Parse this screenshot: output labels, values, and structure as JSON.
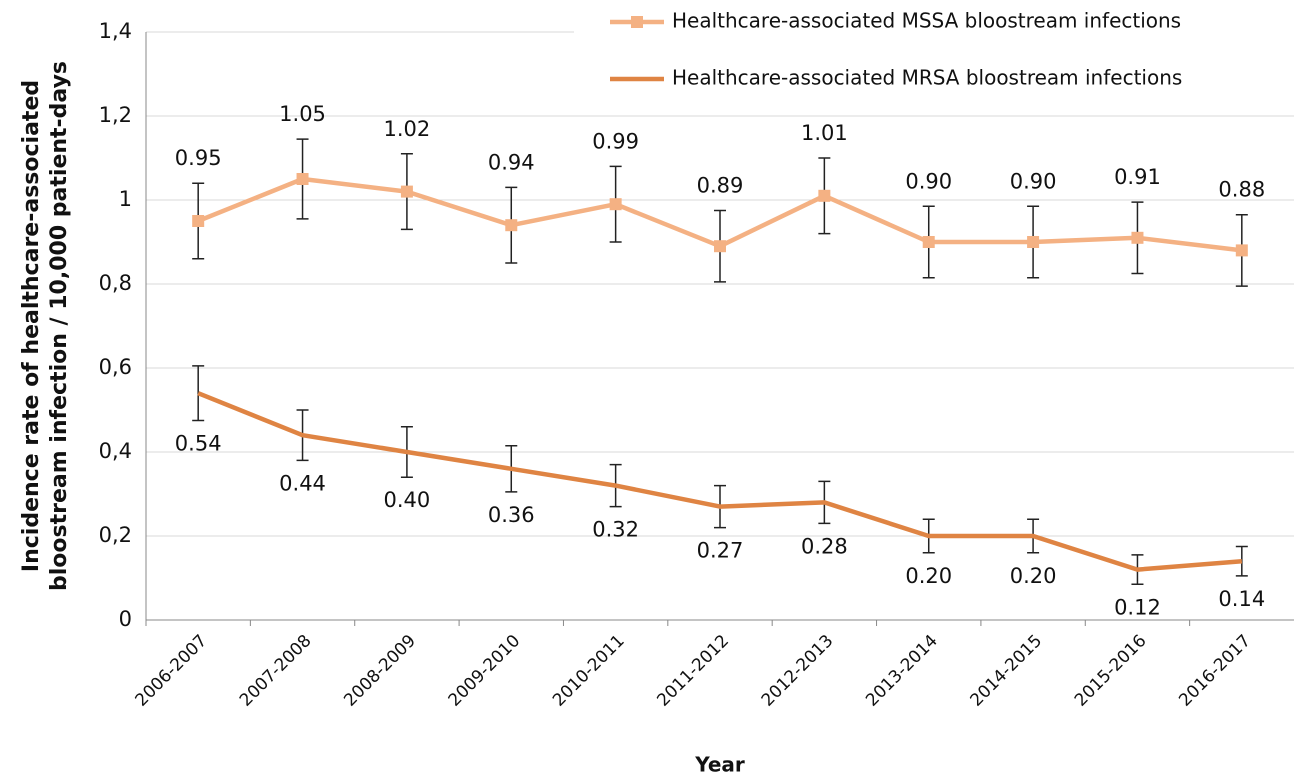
{
  "chart_data": {
    "type": "line",
    "xlabel": "Year",
    "ylabel": [
      "Incidence rate of healthcare-associated",
      "bloostream infection / 10,000 patient-days"
    ],
    "categories": [
      "2006-2007",
      "2007-2008",
      "2008-2009",
      "2009-2010",
      "2010-2011",
      "2011-2012",
      "2012-2013",
      "2013-2014",
      "2014-2015",
      "2015-2016",
      "2016-2017"
    ],
    "series": [
      {
        "name": "Healthcare-associated MSSA bloostream infections",
        "color": "#f4b183",
        "marker": "square",
        "label_position": "above",
        "values": [
          0.95,
          1.05,
          1.02,
          0.94,
          0.99,
          0.89,
          1.01,
          0.9,
          0.9,
          0.91,
          0.88
        ],
        "value_labels": [
          "0.95",
          "1.05",
          "1.02",
          "0.94",
          "0.99",
          "0.89",
          "1.01",
          "0.90",
          "0.90",
          "0.91",
          "0.88"
        ],
        "errors": [
          0.09,
          0.095,
          0.09,
          0.09,
          0.09,
          0.085,
          0.09,
          0.085,
          0.085,
          0.085,
          0.085
        ]
      },
      {
        "name": "Healthcare-associated MRSA bloostream infections",
        "color": "#df8443",
        "marker": "none",
        "label_position": "below",
        "values": [
          0.54,
          0.44,
          0.4,
          0.36,
          0.32,
          0.27,
          0.28,
          0.2,
          0.2,
          0.12,
          0.14
        ],
        "value_labels": [
          "0.54",
          "0.44",
          "0.40",
          "0.36",
          "0.32",
          "0.27",
          "0.28",
          "0.20",
          "0.20",
          "0.12",
          "0.14"
        ],
        "errors": [
          0.065,
          0.06,
          0.06,
          0.055,
          0.05,
          0.05,
          0.05,
          0.04,
          0.04,
          0.035,
          0.035
        ]
      }
    ],
    "ylim": [
      0,
      1.4
    ],
    "yticks": [
      0,
      {
        "value": 0.2,
        "label": "0,2"
      },
      {
        "value": 0.4,
        "label": "0,4"
      },
      {
        "value": 0.6,
        "label": "0,6"
      },
      {
        "value": 0.8,
        "label": "0,8"
      },
      1,
      {
        "value": 1.2,
        "label": "1,2"
      },
      {
        "value": 1.4,
        "label": "1,4"
      }
    ],
    "grid": true,
    "legend": "upper right"
  }
}
